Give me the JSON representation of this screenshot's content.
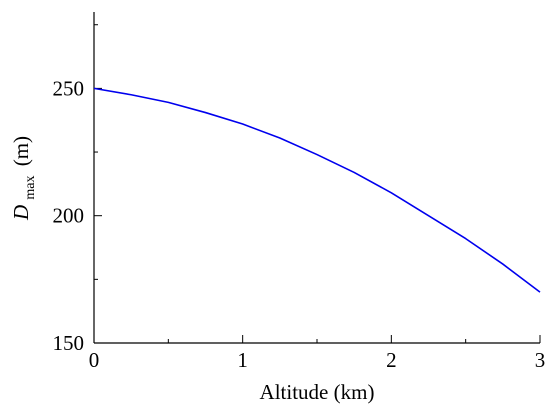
{
  "chart_data": {
    "type": "line",
    "title": "",
    "xlabel": "Altitude (km)",
    "ylabel": {
      "main": "D",
      "subscript": "max",
      "unit": "(m)"
    },
    "xlim": [
      0,
      3
    ],
    "ylim": [
      150,
      280
    ],
    "x_ticks": [
      0,
      1,
      2,
      3
    ],
    "x_tick_labels": [
      "0",
      "1",
      "2",
      "3"
    ],
    "y_ticks": [
      150,
      200,
      250
    ],
    "y_tick_labels": [
      "150",
      "200",
      "250"
    ],
    "grid": false,
    "legend": "none",
    "series": [
      {
        "color": "#0000ee",
        "x": [
          0,
          0.25,
          0.5,
          0.75,
          1.0,
          1.25,
          1.5,
          1.75,
          2.0,
          2.25,
          2.5,
          2.75,
          3.0
        ],
        "y": [
          250,
          247.5,
          244.5,
          240.5,
          236,
          230.5,
          224,
          217,
          209,
          200,
          191,
          181,
          170
        ]
      }
    ]
  }
}
